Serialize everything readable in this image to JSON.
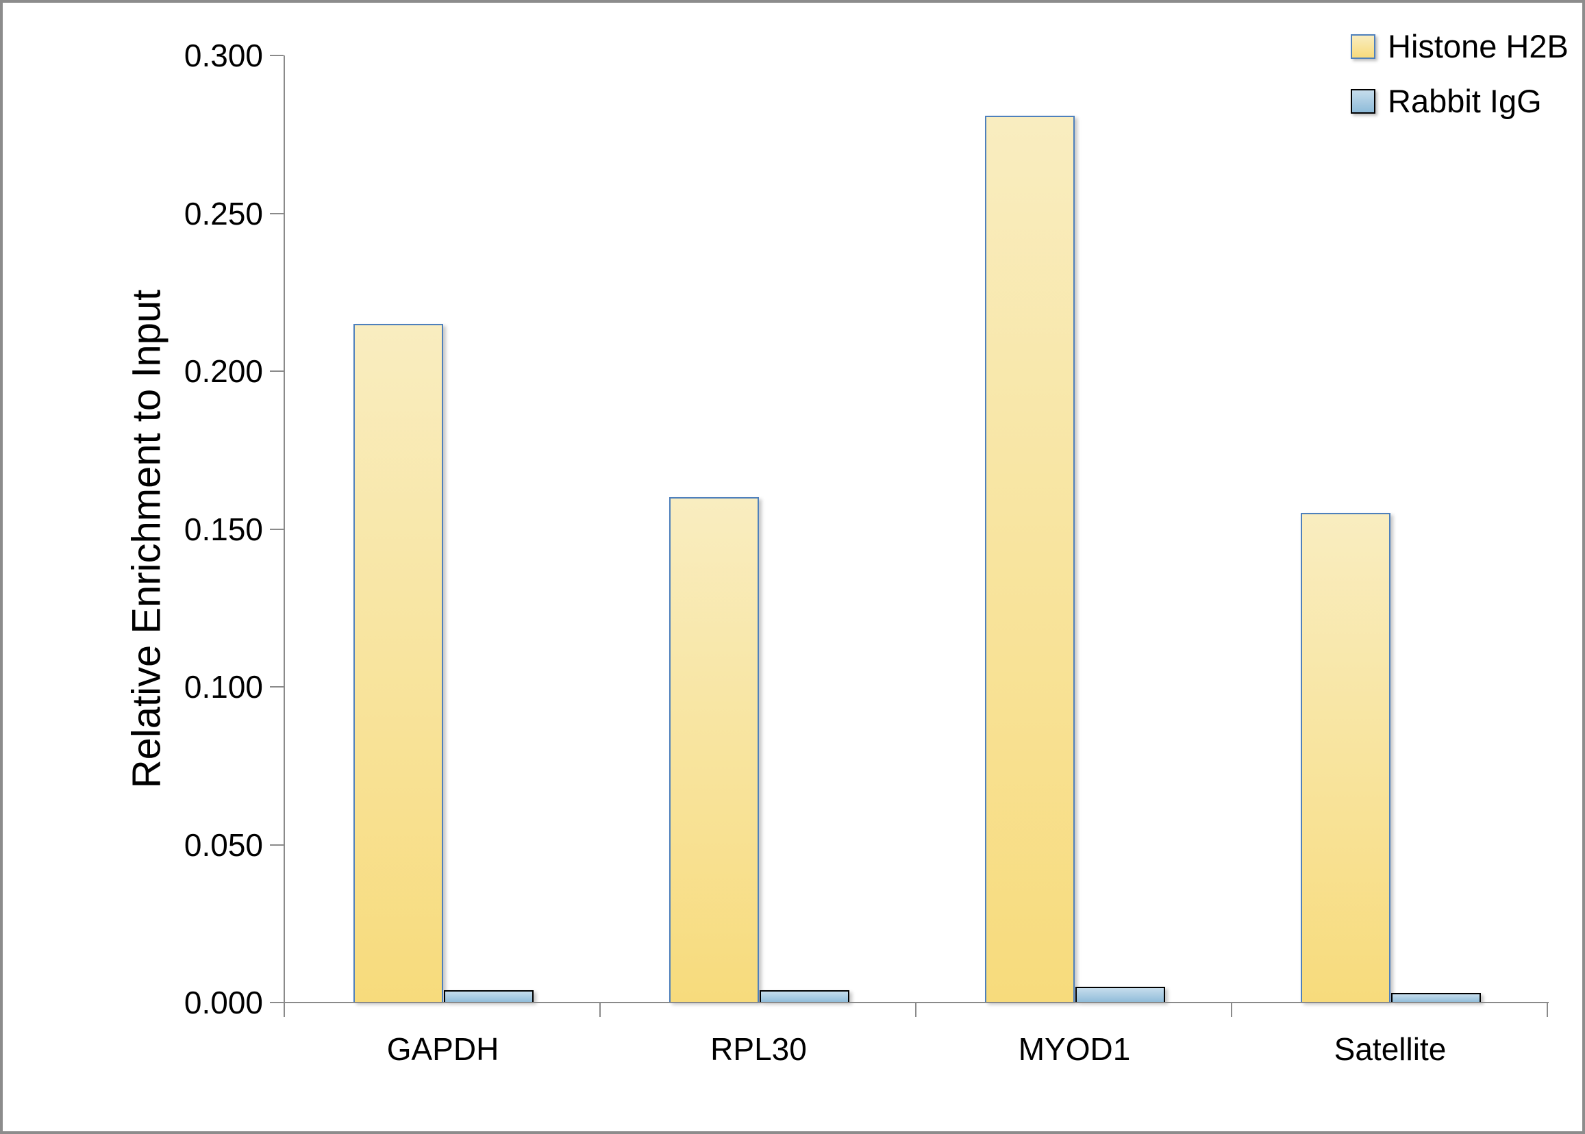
{
  "chart_data": {
    "type": "bar",
    "title": "",
    "xlabel": "",
    "ylabel": "Relative Enrichment to Input",
    "categories": [
      "GAPDH",
      "RPL30",
      "MYOD1",
      "Satellite"
    ],
    "series": [
      {
        "name": "Histone H2B",
        "values": [
          0.215,
          0.16,
          0.281,
          0.155
        ],
        "fill_top": "#F9EDC0",
        "fill_bottom": "#F7DB7C",
        "border_color": "#4E80BC"
      },
      {
        "name": "Rabbit IgG",
        "values": [
          0.004,
          0.004,
          0.005,
          0.003
        ],
        "fill_top": "#C6DDEC",
        "fill_bottom": "#8EBBD9",
        "border_color": "#000000"
      }
    ],
    "ylim": [
      0,
      0.3
    ],
    "ytick_step": 0.05,
    "ytick_labels": [
      "0.000",
      "0.050",
      "0.100",
      "0.150",
      "0.200",
      "0.250",
      "0.300"
    ],
    "grid": false,
    "legend_position": "top-right",
    "axis_color": "#8A8A8A",
    "text_color": "#000000"
  }
}
